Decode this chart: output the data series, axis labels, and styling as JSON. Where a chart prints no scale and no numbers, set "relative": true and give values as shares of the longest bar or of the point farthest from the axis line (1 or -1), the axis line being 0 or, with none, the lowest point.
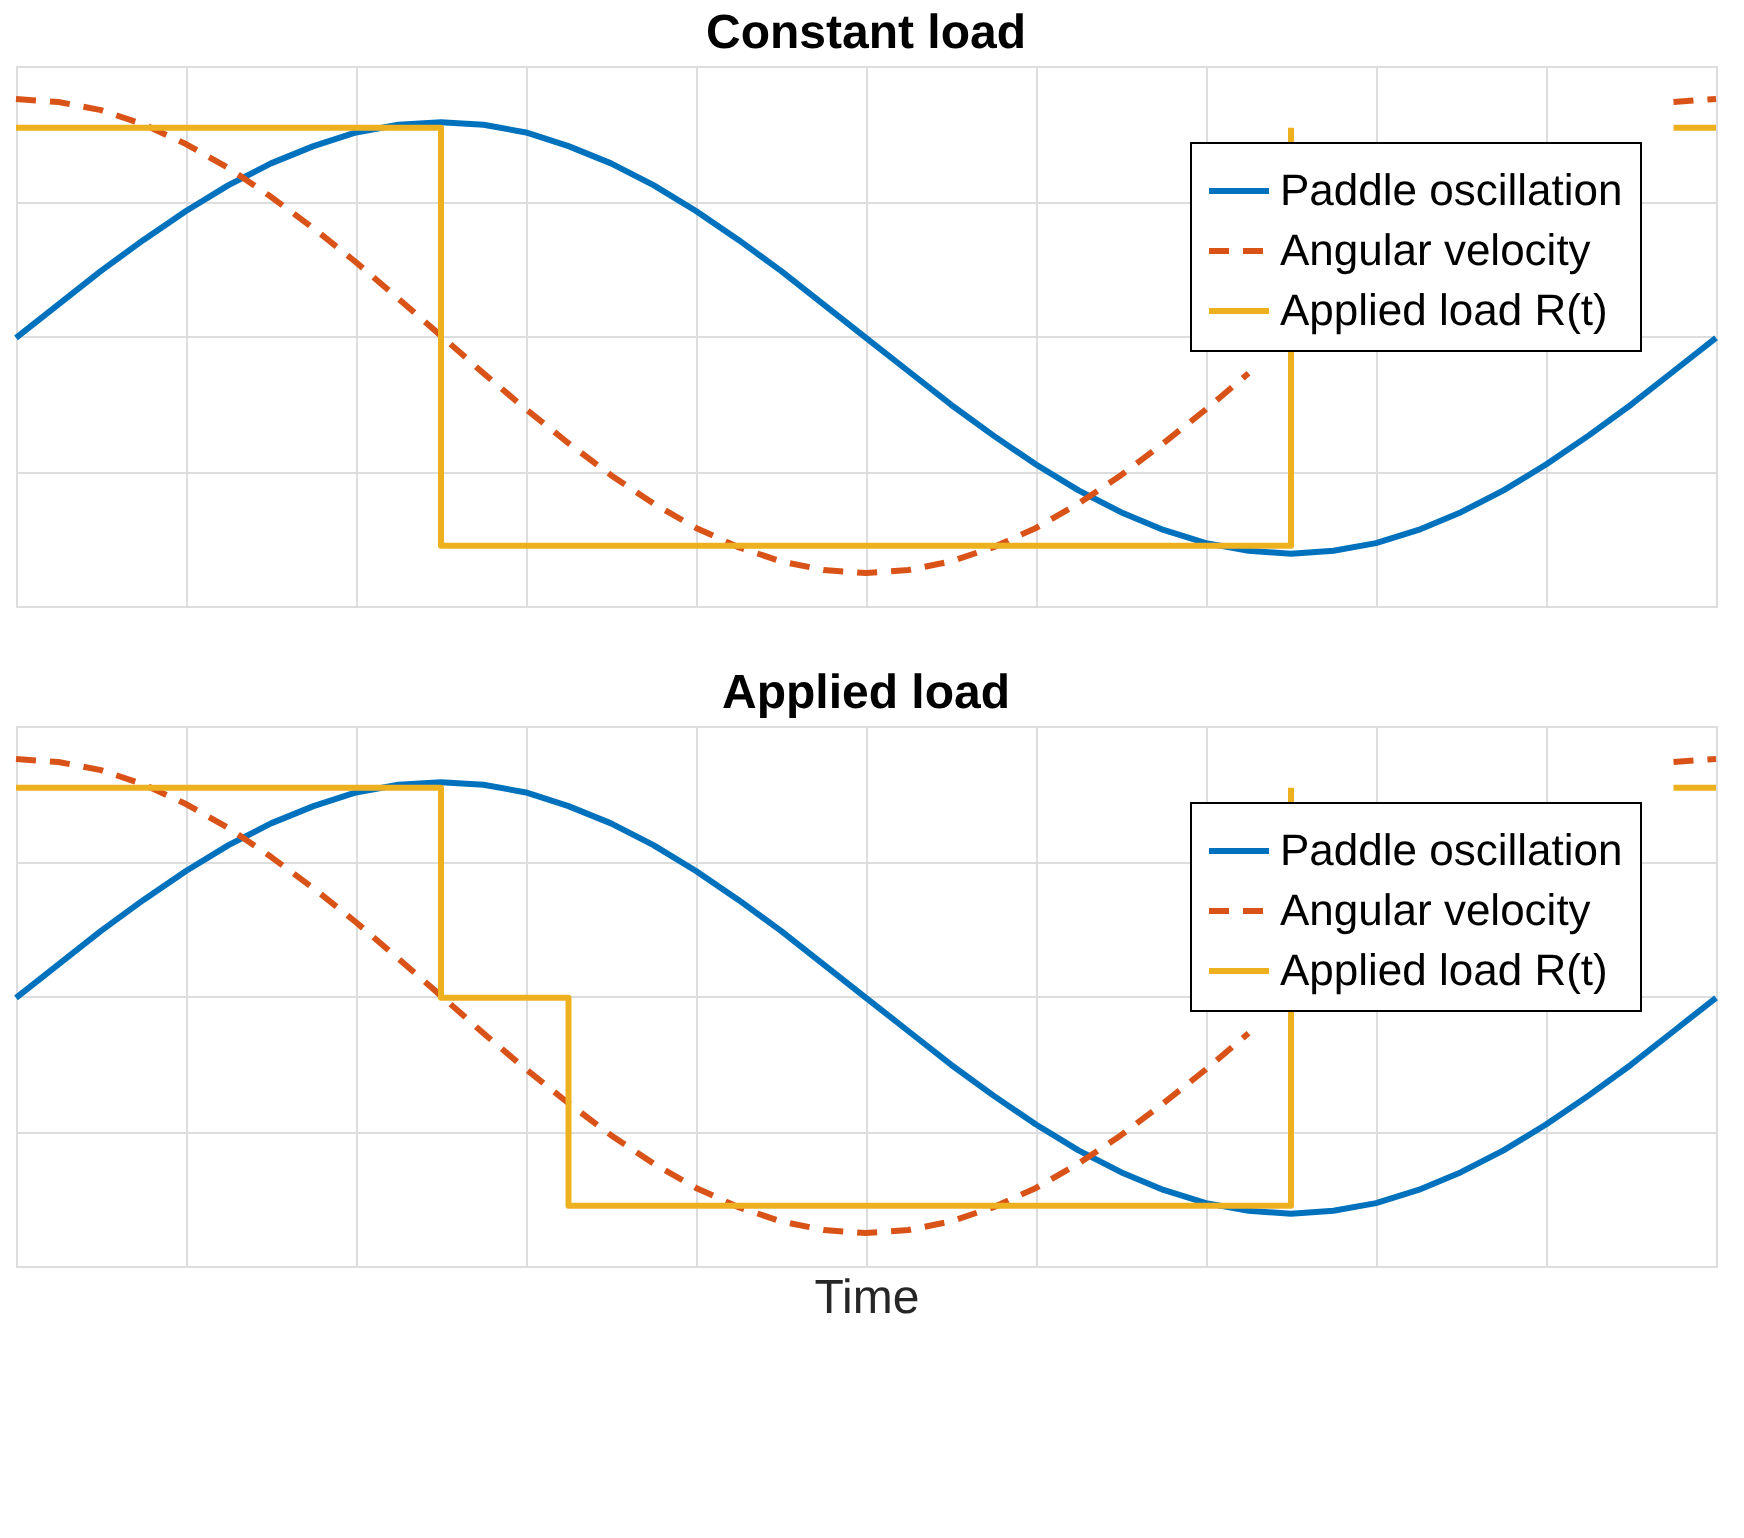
{
  "chart_data": [
    {
      "type": "line",
      "title": "Constant load",
      "relative": true,
      "grid": true,
      "legend": "top right",
      "tick_labels": false,
      "categories": [
        null,
        null,
        null,
        null,
        null,
        null,
        null,
        null,
        null,
        null,
        null,
        null,
        null,
        null,
        null,
        null,
        null,
        null,
        null,
        null,
        null,
        null,
        null,
        null,
        null,
        null,
        null,
        null,
        null,
        null,
        null,
        null,
        null,
        null,
        null,
        null,
        null,
        null,
        null,
        null,
        null
      ],
      "series": [
        {
          "name": "Paddle oscillation",
          "type": "line",
          "line_style": "solid",
          "color": "#0072bd",
          "values": [
            0.529,
            0.595,
            0.661,
            0.722,
            0.779,
            0.83,
            0.873,
            0.907,
            0.934,
            0.949,
            0.954,
            0.949,
            0.934,
            0.907,
            0.873,
            0.83,
            0.779,
            0.722,
            0.661,
            0.595,
            0.529,
            0.463,
            0.397,
            0.336,
            0.279,
            0.228,
            0.185,
            0.15,
            0.124,
            0.109,
            0.103,
            0.109,
            0.124,
            0.15,
            0.185,
            0.228,
            0.279,
            0.336,
            0.397,
            0.463,
            0.529
          ]
        },
        {
          "name": "Angular velocity",
          "type": "line",
          "line_style": "dashed",
          "color": "#d95319",
          "values": [
            1,
            0.994,
            0.978,
            0.95,
            0.911,
            0.864,
            0.807,
            0.745,
            0.678,
            0.606,
            0.533,
            0.459,
            0.388,
            0.321,
            0.258,
            0.202,
            0.154,
            0.116,
            0.088,
            0.071,
            0.065,
            0.071,
            0.088,
            0.116,
            0.154,
            0.202,
            0.258,
            0.321,
            0.388,
            0.459,
            null,
            null,
            null,
            null,
            null,
            null,
            null,
            null,
            null,
            0.994,
            1
          ]
        },
        {
          "name": "Applied load R(t)",
          "type": "step",
          "line_style": "solid",
          "color": "#edb120",
          "values": [
            0.943,
            0.943,
            0.943,
            0.943,
            0.943,
            0.943,
            0.943,
            0.943,
            0.943,
            0.943,
            0.119,
            0.119,
            0.119,
            0.119,
            0.119,
            0.119,
            0.119,
            0.119,
            0.119,
            0.119,
            0.119,
            0.119,
            0.119,
            0.119,
            0.119,
            0.119,
            0.119,
            0.119,
            0.119,
            0.119,
            0.943,
            null,
            null,
            null,
            null,
            null,
            null,
            null,
            null,
            0.943,
            0.943
          ]
        }
      ]
    },
    {
      "type": "line",
      "title": "Applied load",
      "xlabel": "Time",
      "relative": true,
      "grid": true,
      "legend": "top right",
      "tick_labels": false,
      "categories": [
        null,
        null,
        null,
        null,
        null,
        null,
        null,
        null,
        null,
        null,
        null,
        null,
        null,
        null,
        null,
        null,
        null,
        null,
        null,
        null,
        null,
        null,
        null,
        null,
        null,
        null,
        null,
        null,
        null,
        null,
        null,
        null,
        null,
        null,
        null,
        null,
        null,
        null,
        null,
        null,
        null
      ],
      "series": [
        {
          "name": "Paddle oscillation",
          "type": "line",
          "line_style": "solid",
          "color": "#0072bd",
          "values": [
            0.529,
            0.595,
            0.661,
            0.722,
            0.779,
            0.83,
            0.873,
            0.907,
            0.934,
            0.949,
            0.954,
            0.949,
            0.934,
            0.907,
            0.873,
            0.83,
            0.779,
            0.722,
            0.661,
            0.595,
            0.529,
            0.463,
            0.397,
            0.336,
            0.279,
            0.228,
            0.185,
            0.15,
            0.124,
            0.109,
            0.103,
            0.109,
            0.124,
            0.15,
            0.185,
            0.228,
            0.279,
            0.336,
            0.397,
            0.463,
            0.529
          ]
        },
        {
          "name": "Angular velocity",
          "type": "line",
          "line_style": "dashed",
          "color": "#d95319",
          "values": [
            1,
            0.994,
            0.978,
            0.95,
            0.911,
            0.864,
            0.807,
            0.745,
            0.678,
            0.606,
            0.533,
            0.459,
            0.388,
            0.321,
            0.258,
            0.202,
            0.154,
            0.116,
            0.088,
            0.071,
            0.065,
            0.071,
            0.088,
            0.116,
            0.154,
            0.202,
            0.258,
            0.321,
            0.388,
            0.459,
            null,
            null,
            null,
            null,
            null,
            null,
            null,
            null,
            null,
            0.994,
            1
          ]
        },
        {
          "name": "Applied load R(t)",
          "type": "step",
          "line_style": "solid",
          "color": "#edb120",
          "values": [
            0.943,
            0.943,
            0.943,
            0.943,
            0.943,
            0.943,
            0.943,
            0.943,
            0.943,
            0.943,
            0.529,
            0.529,
            0.529,
            0.119,
            0.119,
            0.119,
            0.119,
            0.119,
            0.119,
            0.119,
            0.119,
            0.119,
            0.119,
            0.119,
            0.119,
            0.119,
            0.119,
            0.119,
            0.119,
            0.119,
            0.943,
            null,
            null,
            null,
            null,
            null,
            null,
            null,
            null,
            0.943,
            0.943
          ]
        }
      ]
    }
  ]
}
